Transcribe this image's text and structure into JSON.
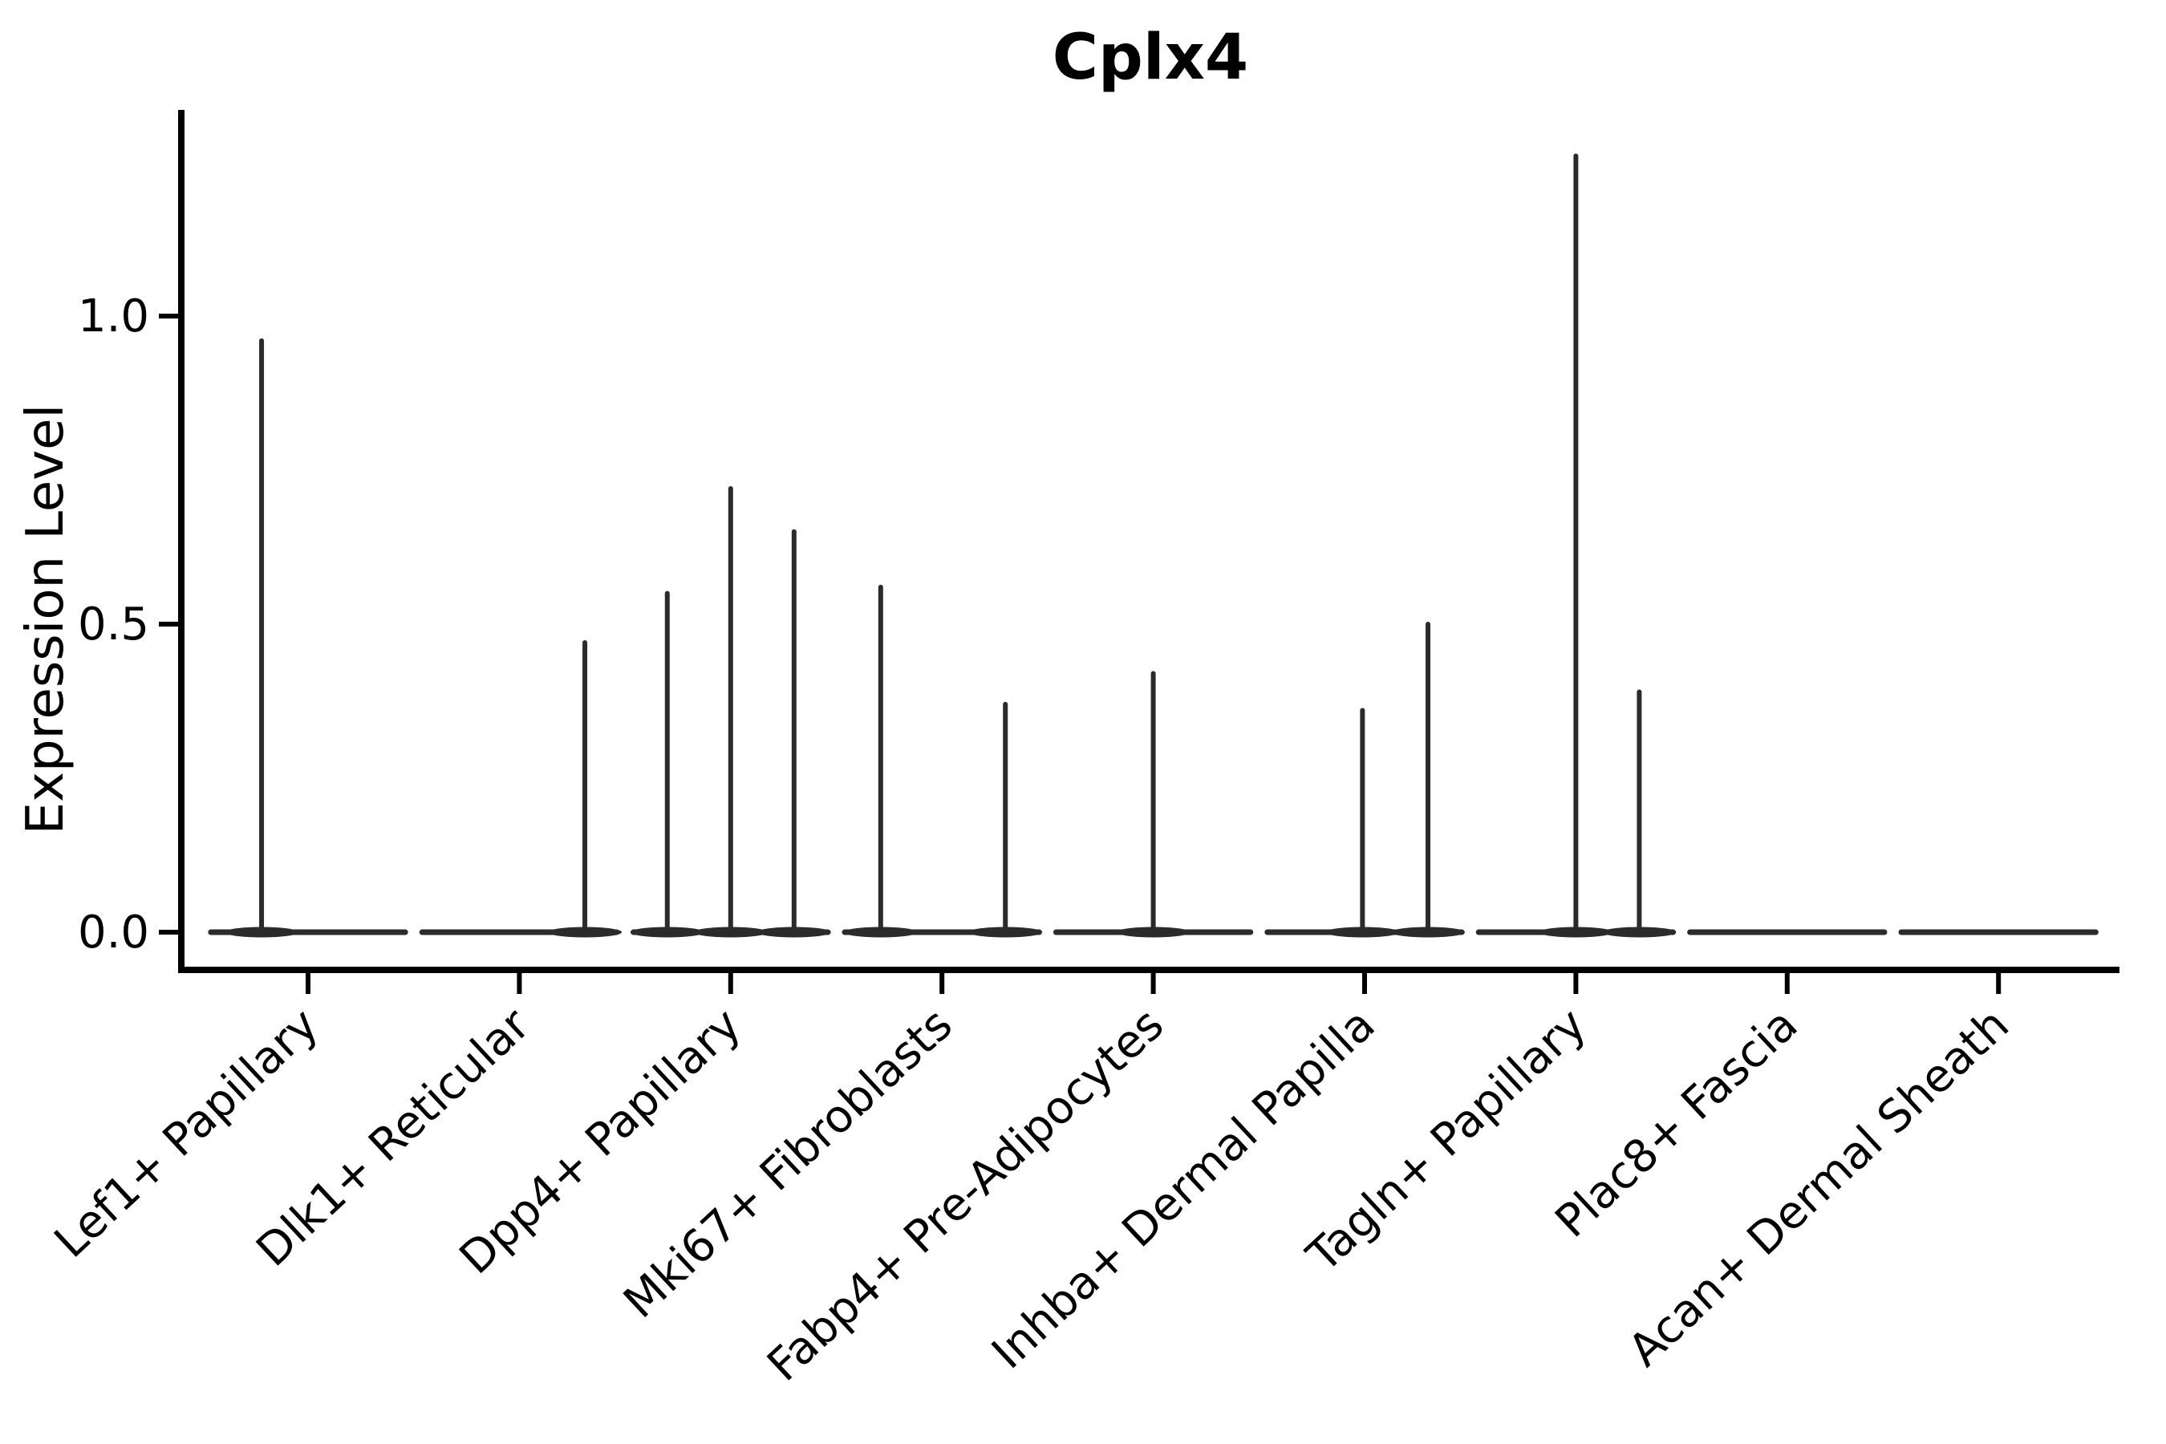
{
  "chart_data": {
    "type": "violin",
    "title": "Cplx4",
    "xlabel": "",
    "ylabel": "Expression Level",
    "y_ticks": [
      0.0,
      0.5,
      1.0
    ],
    "y_tick_labels": [
      "0.0",
      "0.5",
      "1.0"
    ],
    "ylim": [
      -0.06,
      1.33
    ],
    "legend": "none",
    "grid": false,
    "line_color": "#2b2b2b",
    "spine_color": "#000000",
    "background_color": "#ffffff",
    "categories": [
      "Lef1+ Papillary",
      "Dlk1+ Reticular",
      "Dpp4+ Papillary",
      "Mki67+ Fibroblasts",
      "Fabp4+ Pre-Adipocytes",
      "Inhba+ Dermal Papilla",
      "Tagln+ Papillary",
      "Plac8+ Fascia",
      "Acan+ Dermal Sheath"
    ],
    "groups": [
      {
        "label": "Lef1+ Papillary",
        "base_halfwidth": 0.46,
        "spikes": [
          {
            "pos": -0.22,
            "max": 0.96
          }
        ]
      },
      {
        "label": "Dlk1+ Reticular",
        "base_halfwidth": 0.46,
        "spikes": [
          {
            "pos": 0.31,
            "max": 0.47
          }
        ]
      },
      {
        "label": "Dpp4+ Papillary",
        "base_halfwidth": 0.46,
        "spikes": [
          {
            "pos": -0.3,
            "max": 0.55
          },
          {
            "pos": 0.0,
            "max": 0.72
          },
          {
            "pos": 0.3,
            "max": 0.65
          }
        ]
      },
      {
        "label": "Mki67+ Fibroblasts",
        "base_halfwidth": 0.46,
        "spikes": [
          {
            "pos": -0.29,
            "max": 0.56
          },
          {
            "pos": 0.3,
            "max": 0.37
          }
        ]
      },
      {
        "label": "Fabp4+ Pre-Adipocytes",
        "base_halfwidth": 0.46,
        "spikes": [
          {
            "pos": 0.0,
            "max": 0.42
          }
        ]
      },
      {
        "label": "Inhba+ Dermal Papilla",
        "base_halfwidth": 0.46,
        "spikes": [
          {
            "pos": -0.01,
            "max": 0.36
          },
          {
            "pos": 0.3,
            "max": 0.5
          }
        ]
      },
      {
        "label": "Tagln+ Papillary",
        "base_halfwidth": 0.46,
        "spikes": [
          {
            "pos": 0.0,
            "max": 1.26
          },
          {
            "pos": 0.3,
            "max": 0.39
          }
        ]
      },
      {
        "label": "Plac8+ Fascia",
        "base_halfwidth": 0.46,
        "spikes": []
      },
      {
        "label": "Acan+ Dermal Sheath",
        "base_halfwidth": 0.46,
        "spikes": []
      }
    ]
  }
}
